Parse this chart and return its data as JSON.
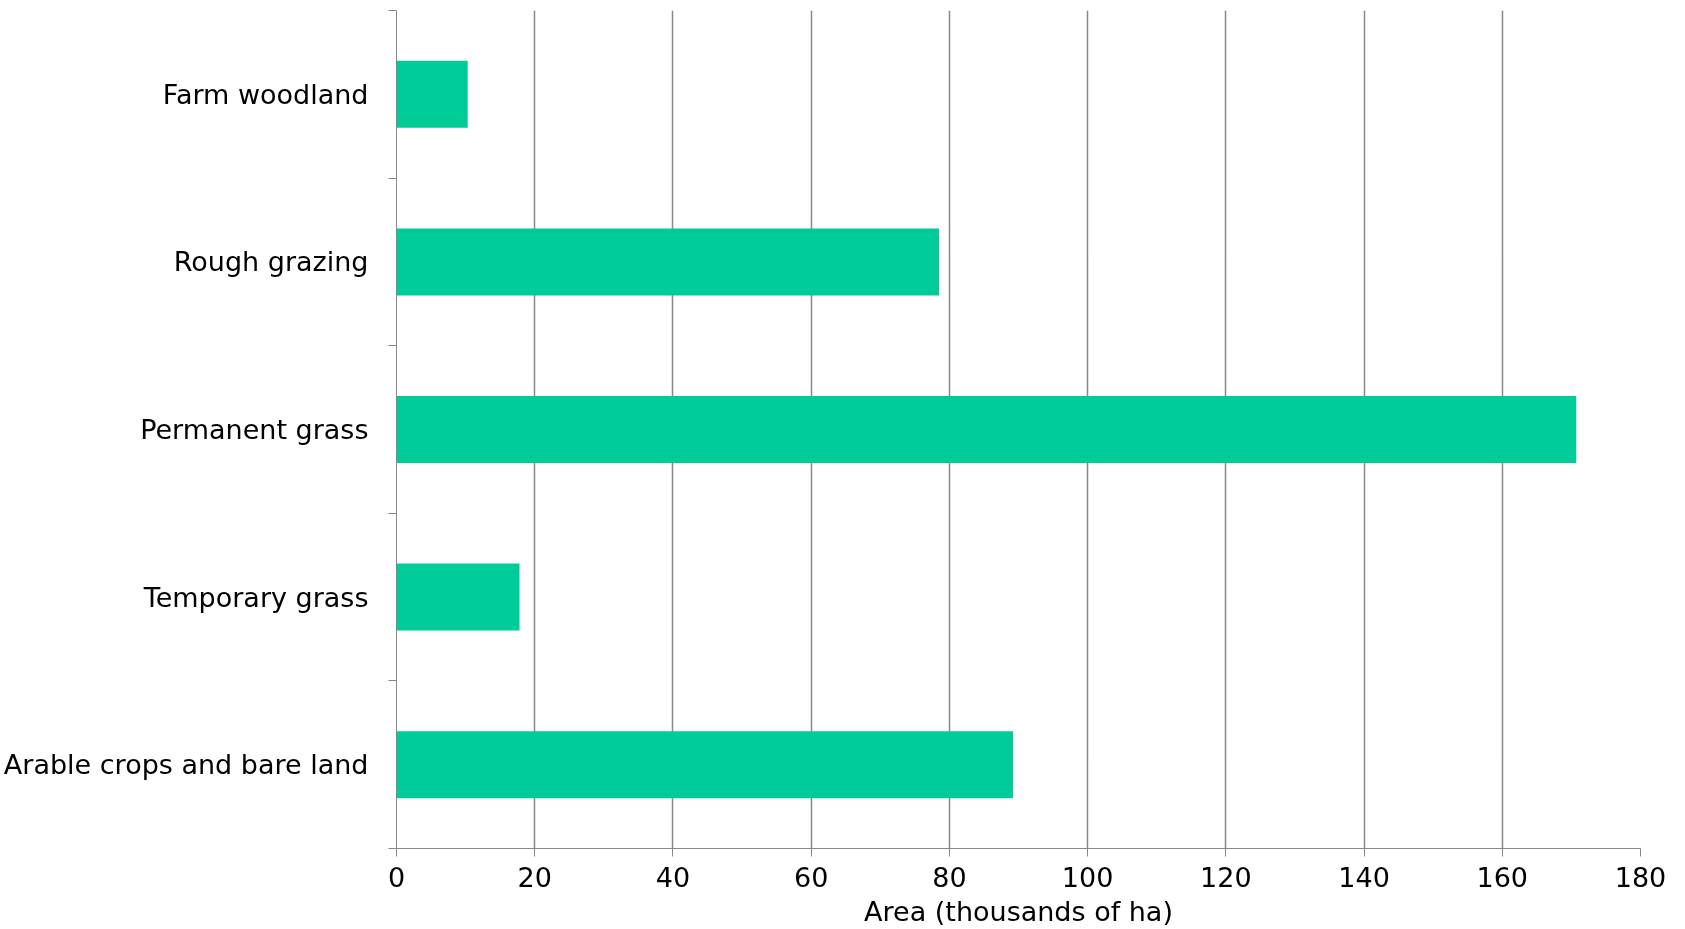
{
  "chart_data": {
    "type": "bar",
    "orientation": "horizontal",
    "xlabel": "Area (thousands of ha)",
    "categories": [
      "Farm woodland",
      "Rough grazing",
      "Permanent grass",
      "Temporary grass",
      "Arable crops and bare land"
    ],
    "values": [
      10.3,
      78.5,
      170.7,
      17.8,
      89.2
    ],
    "color": "#00cc99",
    "xlim": [
      0,
      180
    ],
    "xticks": [
      0,
      20,
      40,
      60,
      80,
      100,
      120,
      140,
      160,
      180
    ],
    "grid": "x"
  }
}
